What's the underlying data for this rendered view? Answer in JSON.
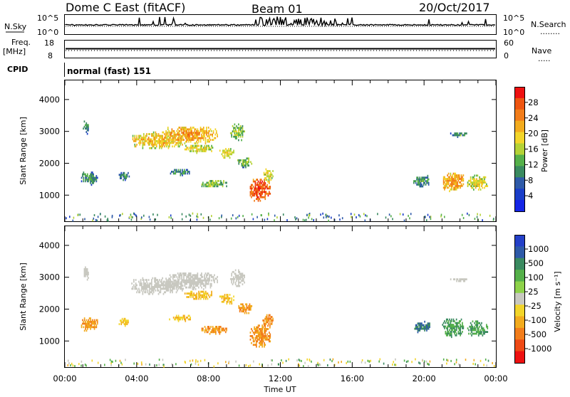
{
  "header": {
    "station": "Dome C East (fitACF)",
    "beam": "Beam 01",
    "date": "20/Oct/2017"
  },
  "nsky_panel": {
    "left_label": "N.Sky",
    "left_ticks": [
      "10^5",
      "10^0"
    ],
    "right_ticks": [
      "10^5",
      "10^0"
    ],
    "right_label": "N.Search",
    "right_key": "........"
  },
  "freq_panel": {
    "left_label_1": "Freq.",
    "left_label_2": "[MHz]",
    "left_ticks": [
      "18",
      "8"
    ],
    "right_ticks": [
      "60",
      "0"
    ],
    "right_label": "Nave",
    "right_key": "....."
  },
  "cpid_panel": {
    "label": "CPID",
    "mode": "normal (fast) 151"
  },
  "power_panel": {
    "ylabel": "Slant Range [km]",
    "colorbar_label": "Power [dB]",
    "colorbar_ticks": [
      "28",
      "24",
      "20",
      "16",
      "12",
      "8",
      "4"
    ],
    "colorbar_colors": [
      "#ee1111",
      "#ee5511",
      "#f27d1a",
      "#f2ab1e",
      "#f2d52a",
      "#b4d236",
      "#55b04a",
      "#3a8a60",
      "#2e5aa8",
      "#1a3ec8",
      "#1425e6"
    ]
  },
  "velocity_panel": {
    "ylabel": "Slant Range [km]",
    "colorbar_label": "Velocity [m s⁻¹]",
    "colorbar_ticks": [
      "1000",
      "500",
      "100",
      "25",
      "-25",
      "-100",
      "-500",
      "-1000"
    ],
    "colorbar_colors": [
      "#2440c8",
      "#2e5aa8",
      "#3a8a60",
      "#55b04a",
      "#8ed24a",
      "#c8c8c0",
      "#f2d52a",
      "#f2ab1e",
      "#f27d1a",
      "#ee4a16",
      "#ee1111"
    ]
  },
  "xaxis": {
    "label": "Time UT",
    "ticks": [
      "00:00",
      "04:00",
      "08:00",
      "12:00",
      "16:00",
      "20:00",
      "00:00"
    ]
  },
  "chart_data": {
    "type": "heatmap",
    "x_range_hours": [
      0,
      24
    ],
    "y_range_km": [
      180,
      4600
    ],
    "y_ticks": [
      1000,
      2000,
      3000,
      4000
    ],
    "echo_regions": [
      {
        "t": [
          1.0,
          1.3
        ],
        "r": [
          2900,
          3300
        ],
        "power_db": 8,
        "velocity": 0
      },
      {
        "t": [
          3.7,
          6.6
        ],
        "r": [
          2450,
          2950
        ],
        "power_db": 18,
        "velocity": 0
      },
      {
        "t": [
          5.6,
          8.5
        ],
        "r": [
          2600,
          3150
        ],
        "power_db": 20,
        "velocity": 0
      },
      {
        "t": [
          9.2,
          10.0
        ],
        "r": [
          2700,
          3200
        ],
        "power_db": 12,
        "velocity": 0
      },
      {
        "t": [
          6.6,
          8.2
        ],
        "r": [
          2300,
          2550
        ],
        "power_db": 16,
        "velocity": -100
      },
      {
        "t": [
          8.6,
          9.4
        ],
        "r": [
          2150,
          2450
        ],
        "power_db": 16,
        "velocity": -100
      },
      {
        "t": [
          9.6,
          10.4
        ],
        "r": [
          1850,
          2150
        ],
        "power_db": 12,
        "velocity": -500
      },
      {
        "t": [
          0.9,
          1.8
        ],
        "r": [
          1300,
          1700
        ],
        "power_db": 8,
        "velocity": -500
      },
      {
        "t": [
          3.0,
          3.6
        ],
        "r": [
          1450,
          1700
        ],
        "power_db": 8,
        "velocity": -100
      },
      {
        "t": [
          5.8,
          7.0
        ],
        "r": [
          1600,
          1800
        ],
        "power_db": 8,
        "velocity": -100
      },
      {
        "t": [
          7.6,
          9.0
        ],
        "r": [
          1200,
          1450
        ],
        "power_db": 12,
        "velocity": -500
      },
      {
        "t": [
          10.3,
          11.4
        ],
        "r": [
          800,
          1500
        ],
        "power_db": 26,
        "velocity": -500
      },
      {
        "t": [
          11.0,
          11.6
        ],
        "r": [
          1400,
          1800
        ],
        "power_db": 16,
        "velocity": -500
      },
      {
        "t": [
          19.4,
          20.3
        ],
        "r": [
          1250,
          1600
        ],
        "power_db": 8,
        "velocity": 500
      },
      {
        "t": [
          21.0,
          22.2
        ],
        "r": [
          1100,
          1700
        ],
        "power_db": 20,
        "velocity": 100
      },
      {
        "t": [
          22.4,
          23.5
        ],
        "r": [
          1150,
          1600
        ],
        "power_db": 16,
        "velocity": 100
      },
      {
        "t": [
          21.4,
          22.4
        ],
        "r": [
          2800,
          2950
        ],
        "power_db": 8,
        "velocity": 0
      }
    ]
  }
}
